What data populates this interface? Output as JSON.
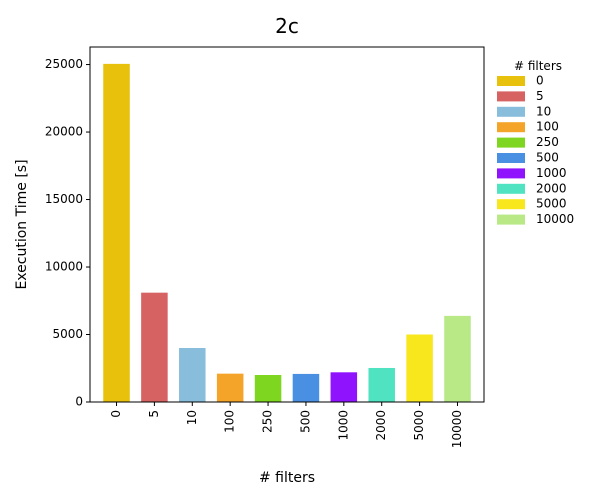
{
  "chart_data": {
    "type": "bar",
    "title": "2c",
    "xlabel": "# filters",
    "ylabel": "Execution Time [s]",
    "categories": [
      "0",
      "5",
      "10",
      "100",
      "250",
      "500",
      "1000",
      "2000",
      "5000",
      "10000"
    ],
    "values": [
      25050,
      8100,
      4000,
      2100,
      2000,
      2080,
      2200,
      2520,
      5000,
      6380
    ],
    "colors": [
      "#e8c10c",
      "#d66262",
      "#88bedc",
      "#f5a42a",
      "#7fd620",
      "#4a90e2",
      "#9013fe",
      "#50e3c2",
      "#f8e71c",
      "#b8e986"
    ],
    "ylim": [
      0,
      26300
    ],
    "yticks": [
      0,
      5000,
      10000,
      15000,
      20000,
      25000
    ],
    "grid": false,
    "legend": {
      "title": "# filters",
      "placement": "outside-right",
      "entries": [
        "0",
        "5",
        "10",
        "100",
        "250",
        "500",
        "1000",
        "2000",
        "5000",
        "10000"
      ]
    }
  }
}
